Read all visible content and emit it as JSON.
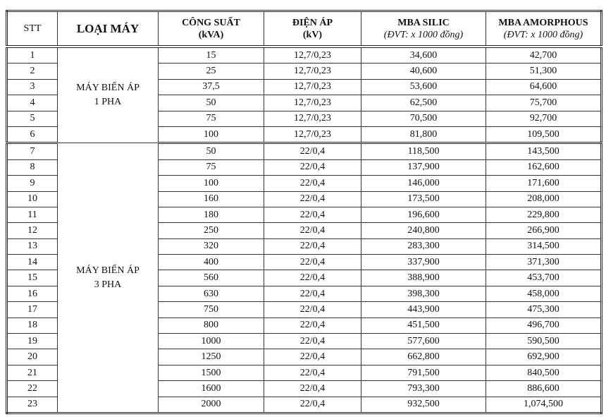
{
  "headers": {
    "stt": "STT",
    "type": "LOẠI MÁY",
    "power": "CÔNG SUẤT",
    "power_unit": "(kVA)",
    "voltage": "ĐIỆN ÁP",
    "voltage_unit": "(kV)",
    "silic": "MBA SILIC",
    "silic_unit": "(ĐVT: x 1000 đồng)",
    "amorphous": "MBA AMORPHOUS",
    "amorphous_unit": "(ĐVT: x 1000 đồng)"
  },
  "groups": [
    {
      "line1": "MÁY BIẾN ÁP",
      "line2": "1 PHA"
    },
    {
      "line1": "MÁY BIẾN ÁP",
      "line2": "3 PHA"
    }
  ],
  "rows": [
    [
      "1",
      "15",
      "12,7/0,23",
      "34,600",
      "42,700"
    ],
    [
      "2",
      "25",
      "12,7/0,23",
      "40,600",
      "51,300"
    ],
    [
      "3",
      "37,5",
      "12,7/0,23",
      "53,600",
      "64,600"
    ],
    [
      "4",
      "50",
      "12,7/0,23",
      "62,500",
      "75,700"
    ],
    [
      "5",
      "75",
      "12,7/0,23",
      "70,500",
      "92,700"
    ],
    [
      "6",
      "100",
      "12,7/0,23",
      "81,800",
      "109,500"
    ],
    [
      "7",
      "50",
      "22/0,4",
      "118,500",
      "143,500"
    ],
    [
      "8",
      "75",
      "22/0,4",
      "137,900",
      "162,600"
    ],
    [
      "9",
      "100",
      "22/0,4",
      "146,000",
      "171,600"
    ],
    [
      "10",
      "160",
      "22/0,4",
      "173,500",
      "208,000"
    ],
    [
      "11",
      "180",
      "22/0,4",
      "196,600",
      "229,800"
    ],
    [
      "12",
      "250",
      "22/0,4",
      "240,800",
      "266,900"
    ],
    [
      "13",
      "320",
      "22/0,4",
      "283,300",
      "314,500"
    ],
    [
      "14",
      "400",
      "22/0,4",
      "337,900",
      "371,300"
    ],
    [
      "15",
      "560",
      "22/0,4",
      "388,900",
      "453,700"
    ],
    [
      "16",
      "630",
      "22/0,4",
      "398,300",
      "458,000"
    ],
    [
      "17",
      "750",
      "22/0,4",
      "443,900",
      "475,300"
    ],
    [
      "18",
      "800",
      "22/0,4",
      "451,500",
      "496,700"
    ],
    [
      "19",
      "1000",
      "22/0,4",
      "577,600",
      "590,500"
    ],
    [
      "20",
      "1250",
      "22/0,4",
      "662,800",
      "692,900"
    ],
    [
      "21",
      "1500",
      "22/0,4",
      "791,500",
      "840,500"
    ],
    [
      "22",
      "1600",
      "22/0,4",
      "793,300",
      "886,600"
    ],
    [
      "23",
      "2000",
      "22/0,4",
      "932,500",
      "1,074,500"
    ]
  ]
}
